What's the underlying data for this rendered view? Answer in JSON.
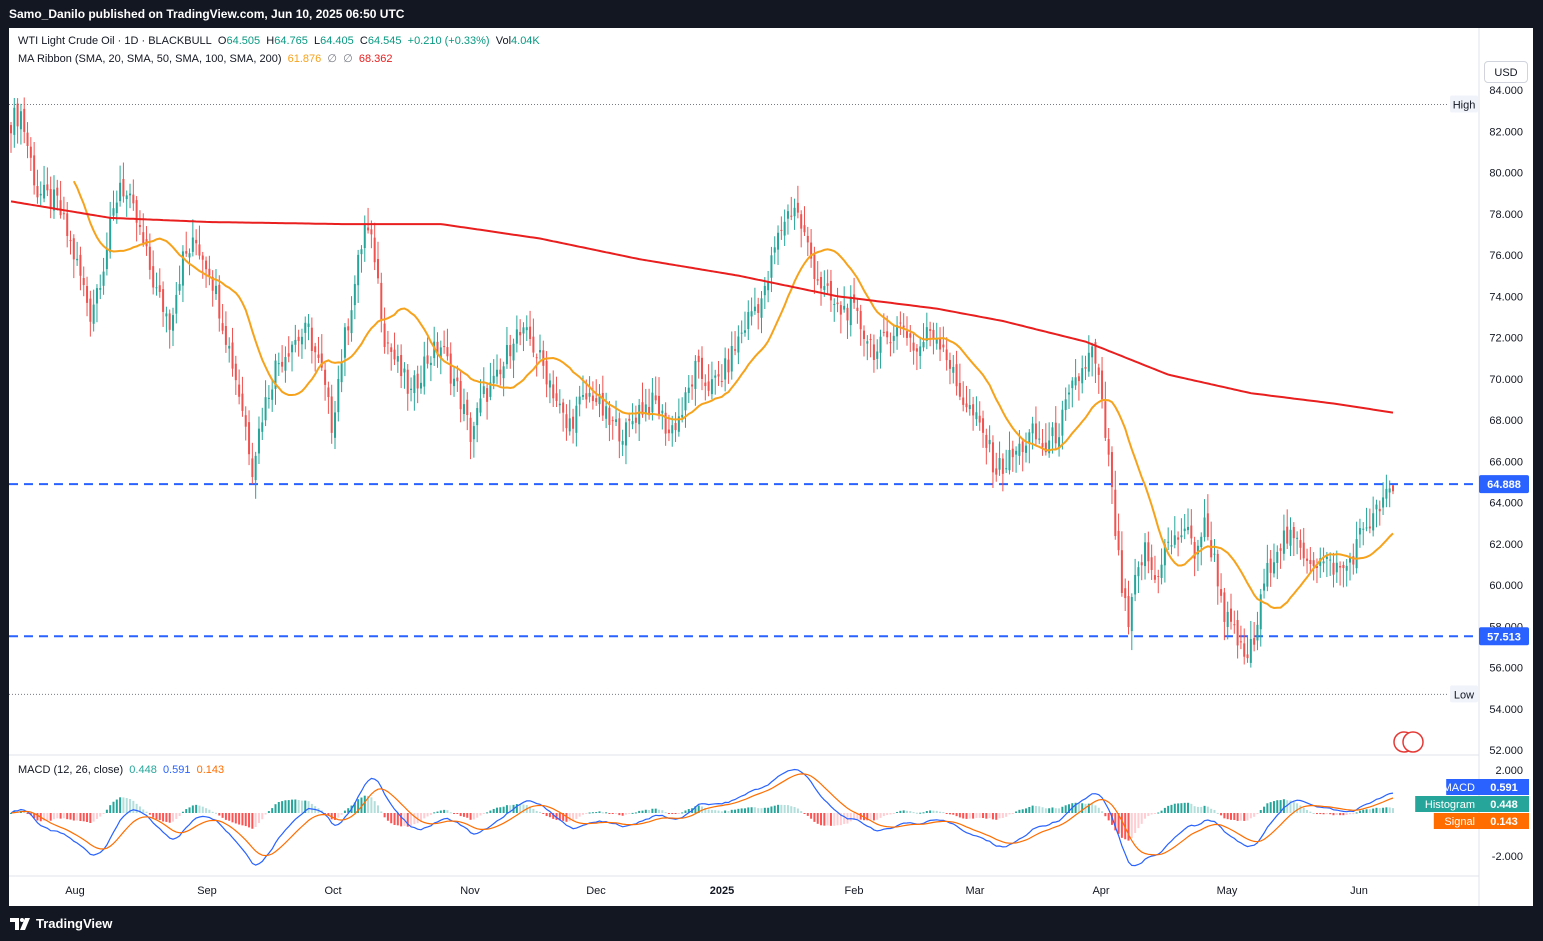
{
  "header": {
    "publisher_line": "Samo_Danilo published on TradingView.com, Jun 10, 2025 06:50 UTC"
  },
  "footer": {
    "brand": "TradingView"
  },
  "legend": {
    "symbol": "WTI Light Crude Oil · 1D · BLACKBULL",
    "open_label": "O",
    "open": "64.505",
    "high_label": "H",
    "high": "64.765",
    "low_label": "L",
    "low": "64.405",
    "close_label": "C",
    "close": "64.545",
    "change": "+0.210 (+0.33%)",
    "vol_label": "Vol",
    "vol": "4.04K",
    "ma_title": "MA Ribbon (SMA, 20, SMA, 50, SMA, 100, SMA, 200)",
    "ma20_value": "61.876",
    "ma_sep1": "∅",
    "ma_sep2": "∅",
    "ma200_value": "68.362",
    "macd_title": "MACD (12, 26, close)",
    "macd_hist": "0.448",
    "macd_line": "0.591",
    "macd_signal": "0.143"
  },
  "currency_button": "USD",
  "colors": {
    "up": "#26a69a",
    "down": "#ef5350",
    "ma20": "#f7a21b",
    "ma200": "#e91e1e",
    "level": "#2962ff",
    "macd": "#2962ff",
    "signal": "#ff6d00"
  },
  "chart_data": {
    "type": "candlestick",
    "title": "WTI Light Crude Oil · 1D · BLACKBULL",
    "price_axis": {
      "ticks": [
        "84.000",
        "82.000",
        "80.000",
        "78.000",
        "76.000",
        "74.000",
        "72.000",
        "70.000",
        "68.000",
        "66.000",
        "64.000",
        "62.000",
        "60.000",
        "58.000",
        "56.000",
        "54.000",
        "52.000"
      ],
      "range": [
        52,
        84
      ]
    },
    "time_axis": [
      "Aug",
      "Sep",
      "Oct",
      "Nov",
      "Dec",
      "2025",
      "Feb",
      "Mar",
      "Apr",
      "May",
      "Jun"
    ],
    "levels": [
      {
        "label": "High",
        "value": 83.3
      },
      {
        "label": "Low",
        "value": 54.7
      }
    ],
    "horizontal_lines": [
      {
        "label": "64.888",
        "value": 64.888,
        "style": "dashed"
      },
      {
        "label": "57.513",
        "value": 57.513,
        "style": "dashed"
      }
    ],
    "anchors": [
      [
        0,
        82.5
      ],
      [
        3,
        82.9
      ],
      [
        8,
        79.0
      ],
      [
        14,
        78.5
      ],
      [
        20,
        75.5
      ],
      [
        24,
        73.2
      ],
      [
        28,
        75.6
      ],
      [
        33,
        79.6
      ],
      [
        38,
        77.6
      ],
      [
        44,
        74.2
      ],
      [
        48,
        72.8
      ],
      [
        52,
        75.8
      ],
      [
        56,
        76.6
      ],
      [
        60,
        75.4
      ],
      [
        63,
        73.5
      ],
      [
        67,
        70.8
      ],
      [
        70,
        68.6
      ],
      [
        73,
        65.8
      ],
      [
        76,
        68.3
      ],
      [
        80,
        70.6
      ],
      [
        85,
        71.8
      ],
      [
        90,
        72.3
      ],
      [
        94,
        70.2
      ],
      [
        97,
        67.8
      ],
      [
        100,
        71.1
      ],
      [
        104,
        74.6
      ],
      [
        107,
        77.4
      ],
      [
        110,
        76.0
      ],
      [
        113,
        72.1
      ],
      [
        117,
        70.6
      ],
      [
        121,
        69.2
      ],
      [
        125,
        70.8
      ],
      [
        130,
        71.6
      ],
      [
        135,
        69.5
      ],
      [
        139,
        67.3
      ],
      [
        143,
        69.2
      ],
      [
        148,
        70.1
      ],
      [
        152,
        72.2
      ],
      [
        157,
        71.9
      ],
      [
        163,
        69.9
      ],
      [
        168,
        67.6
      ],
      [
        172,
        68.7
      ],
      [
        176,
        69.3
      ],
      [
        181,
        67.8
      ],
      [
        186,
        67.4
      ],
      [
        190,
        68.6
      ],
      [
        195,
        68.8
      ],
      [
        199,
        67.4
      ],
      [
        203,
        68.4
      ],
      [
        207,
        70.4
      ],
      [
        212,
        69.6
      ],
      [
        216,
        70.4
      ],
      [
        220,
        71.9
      ],
      [
        224,
        73.3
      ],
      [
        228,
        74.1
      ],
      [
        231,
        76.3
      ],
      [
        234,
        77.8
      ],
      [
        237,
        78.4
      ],
      [
        240,
        76.9
      ],
      [
        243,
        75.3
      ],
      [
        246,
        74.2
      ],
      [
        250,
        73.3
      ],
      [
        254,
        73.4
      ],
      [
        258,
        72.3
      ],
      [
        262,
        71.2
      ],
      [
        266,
        72.3
      ],
      [
        270,
        72.6
      ],
      [
        274,
        71.3
      ],
      [
        278,
        72.4
      ],
      [
        282,
        71.7
      ],
      [
        286,
        69.6
      ],
      [
        290,
        68.5
      ],
      [
        294,
        67.3
      ],
      [
        298,
        65.6
      ],
      [
        301,
        65.9
      ],
      [
        305,
        66.6
      ],
      [
        309,
        67.3
      ],
      [
        313,
        66.6
      ],
      [
        317,
        67.6
      ],
      [
        321,
        69.4
      ],
      [
        324,
        70.4
      ],
      [
        327,
        71.3
      ],
      [
        329,
        69.8
      ],
      [
        332,
        66.0
      ],
      [
        334,
        62.6
      ],
      [
        336,
        59.8
      ],
      [
        338,
        57.9
      ],
      [
        340,
        60.1
      ],
      [
        343,
        61.7
      ],
      [
        346,
        60.2
      ],
      [
        349,
        61.8
      ],
      [
        352,
        62.1
      ],
      [
        355,
        62.8
      ],
      [
        358,
        61.6
      ],
      [
        361,
        62.9
      ],
      [
        364,
        61.2
      ],
      [
        367,
        58.6
      ],
      [
        370,
        57.6
      ],
      [
        373,
        56.4
      ],
      [
        376,
        57.2
      ],
      [
        379,
        60.1
      ],
      [
        382,
        61.6
      ],
      [
        385,
        62.3
      ],
      [
        388,
        62.1
      ],
      [
        391,
        61.6
      ],
      [
        394,
        61.2
      ],
      [
        397,
        61.1
      ],
      [
        400,
        60.9
      ],
      [
        403,
        60.7
      ],
      [
        406,
        61.5
      ],
      [
        409,
        62.8
      ],
      [
        412,
        63.2
      ],
      [
        415,
        64.1
      ],
      [
        418,
        64.55
      ]
    ],
    "ohlc_summary": {
      "open": 64.505,
      "high": 64.765,
      "low": 64.405,
      "close": 64.545
    },
    "series": [
      {
        "name": "SMA 20",
        "value": 61.876
      },
      {
        "name": "SMA 200",
        "value": 68.362
      }
    ],
    "ma200_anchors": [
      [
        0,
        78.6
      ],
      [
        30,
        77.8
      ],
      [
        60,
        77.6
      ],
      [
        100,
        77.5
      ],
      [
        130,
        77.5
      ],
      [
        160,
        76.8
      ],
      [
        190,
        75.8
      ],
      [
        220,
        75.0
      ],
      [
        250,
        74.0
      ],
      [
        280,
        73.4
      ],
      [
        300,
        72.8
      ],
      [
        325,
        71.8
      ],
      [
        350,
        70.2
      ],
      [
        375,
        69.3
      ],
      [
        400,
        68.8
      ],
      [
        418,
        68.36
      ]
    ],
    "macd": {
      "ylim": [
        -3.5,
        2.2
      ],
      "ticks": [
        "2.000",
        "-2.000"
      ],
      "macd_value": 0.591,
      "signal_value": 0.143,
      "histogram_value": 0.448,
      "labels": {
        "macd": "MACD",
        "histogram": "Histogram",
        "signal": "Signal"
      }
    }
  }
}
